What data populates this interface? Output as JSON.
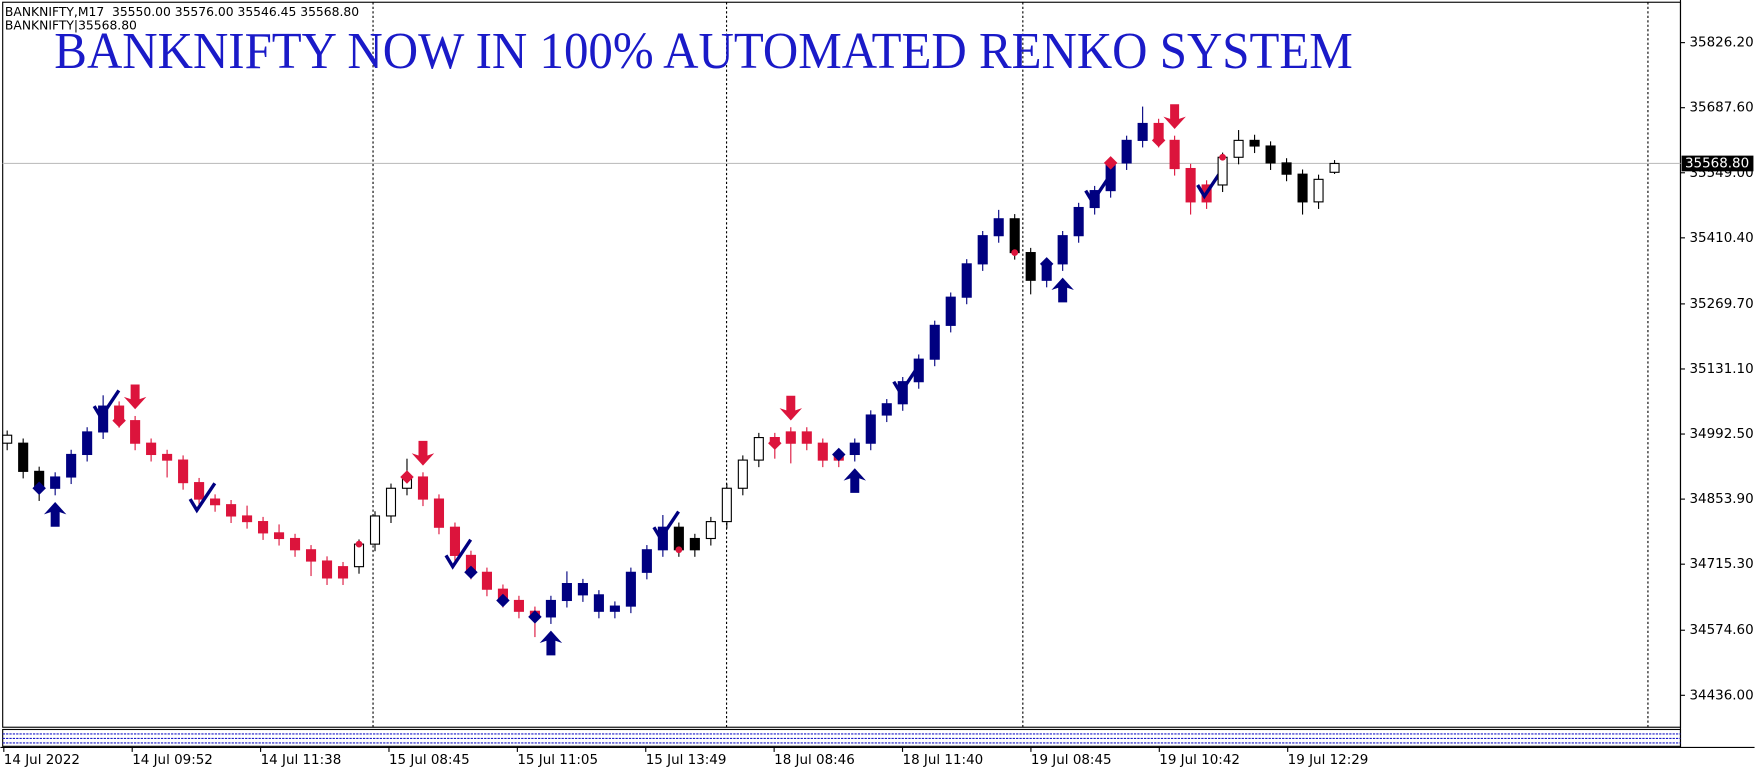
{
  "chart_data": {
    "type": "candlestick",
    "title": "BANKNIFTY NOW IN 100% AUTOMATED RENKO SYSTEM",
    "header_line1": "BANKNIFTY,M17  35550.00 35576.00 35546.45 35568.80",
    "header_line2": "BANKNIFTY|35568.80",
    "x_labels": [
      "14 Jul 2022",
      "14 Jul 09:52",
      "14 Jul 11:38",
      "15 Jul 08:45",
      "15 Jul 11:05",
      "15 Jul 13:49",
      "18 Jul 08:46",
      "18 Jul 11:40",
      "19 Jul 08:45",
      "19 Jul 10:42",
      "19 Jul 12:29"
    ],
    "ylim": [
      34368,
      35917
    ],
    "yticks": [
      {
        "value": 35826.2,
        "label": "35826.20"
      },
      {
        "value": 35687.6,
        "label": "35687.60"
      },
      {
        "value": 35549.0,
        "label": "35549.00"
      },
      {
        "value": 35410.4,
        "label": "35410.40"
      },
      {
        "value": 35269.7,
        "label": "35269.70"
      },
      {
        "value": 35131.1,
        "label": "35131.10"
      },
      {
        "value": 34992.5,
        "label": "34992.50"
      },
      {
        "value": 34853.9,
        "label": "34853.90"
      },
      {
        "value": 34715.3,
        "label": "34715.30"
      },
      {
        "value": 34574.6,
        "label": "34574.60"
      },
      {
        "value": 34436.0,
        "label": "34436.00"
      }
    ],
    "price_line": {
      "value": 35568.8,
      "label": "35568.80"
    },
    "open": [
      34990,
      34973,
      34913,
      34877,
      34901,
      34949,
      34997,
      35052,
      35021,
      34973,
      34949,
      34937,
      34889,
      34854,
      34842,
      34818,
      34806,
      34782,
      34770,
      34746,
      34722,
      34686,
      34710,
      34758,
      34818,
      34877,
      34901,
      34854,
      34794,
      34734,
      34698,
      34662,
      34638,
      34615,
      34603,
      34638,
      34674,
      34650,
      34615,
      34626,
      34698,
      34746,
      34794,
      34746,
      34770,
      34806,
      34877,
      34937,
      34985,
      34973,
      34997,
      34973,
      34937,
      34949,
      34973,
      35033,
      35057,
      35104,
      35152,
      35224,
      35284,
      35355,
      35415,
      35451,
      35379,
      35320,
      35355,
      35415,
      35475,
      35511,
      35570,
      35618,
      35654,
      35618,
      35558,
      35487,
      35523,
      35582,
      35618,
      35606,
      35570,
      35546,
      35487,
      35550.0
    ],
    "high": [
      35000,
      34983,
      34923,
      34911,
      34959,
      35007,
      35075,
      35062,
      35031,
      34983,
      34959,
      34947,
      34899,
      34864,
      34852,
      34840,
      34816,
      34800,
      34780,
      34756,
      34732,
      34720,
      34768,
      34828,
      34887,
      34940,
      34911,
      34864,
      34804,
      34744,
      34708,
      34672,
      34648,
      34625,
      34648,
      34700,
      34684,
      34660,
      34636,
      34708,
      34756,
      34820,
      34804,
      34780,
      34816,
      34887,
      34947,
      34995,
      34995,
      35007,
      35007,
      34983,
      34959,
      34983,
      35043,
      35067,
      35114,
      35162,
      35234,
      35294,
      35365,
      35425,
      35470,
      35461,
      35389,
      35365,
      35425,
      35485,
      35521,
      35580,
      35628,
      35690,
      35664,
      35628,
      35568,
      35533,
      35592,
      35640,
      35630,
      35616,
      35580,
      35556,
      35545,
      35576.0
    ],
    "low": [
      34958,
      34898,
      34850,
      34862,
      34886,
      34934,
      34982,
      35006,
      34958,
      34934,
      34900,
      34874,
      34839,
      34827,
      34803,
      34791,
      34767,
      34755,
      34731,
      34690,
      34671,
      34671,
      34695,
      34743,
      34803,
      34862,
      34839,
      34779,
      34719,
      34683,
      34647,
      34623,
      34600,
      34560,
      34588,
      34623,
      34635,
      34600,
      34600,
      34611,
      34683,
      34731,
      34731,
      34731,
      34755,
      34791,
      34862,
      34922,
      34940,
      34930,
      34958,
      34922,
      34922,
      34934,
      34958,
      35018,
      35042,
      35089,
      35137,
      35209,
      35269,
      35340,
      35400,
      35364,
      35290,
      35305,
      35340,
      35400,
      35460,
      35496,
      35555,
      35603,
      35603,
      35543,
      35460,
      35472,
      35508,
      35567,
      35591,
      35555,
      35531,
      35460,
      35472,
      35546.45
    ],
    "close": [
      34973,
      34913,
      34877,
      34901,
      34949,
      34997,
      35052,
      35021,
      34973,
      34949,
      34937,
      34889,
      34854,
      34842,
      34818,
      34806,
      34782,
      34770,
      34746,
      34722,
      34686,
      34710,
      34758,
      34818,
      34877,
      34901,
      34854,
      34794,
      34734,
      34698,
      34662,
      34638,
      34615,
      34603,
      34638,
      34674,
      34650,
      34615,
      34626,
      34698,
      34746,
      34794,
      34746,
      34770,
      34806,
      34877,
      34937,
      34985,
      34973,
      34997,
      34973,
      34937,
      34949,
      34973,
      35033,
      35057,
      35104,
      35152,
      35224,
      35284,
      35355,
      35415,
      35451,
      35379,
      35320,
      35355,
      35415,
      35475,
      35511,
      35570,
      35618,
      35654,
      35618,
      35558,
      35487,
      35523,
      35582,
      35618,
      35606,
      35570,
      35546,
      35487,
      35535,
      35568.8
    ],
    "colors": [
      "#ffffff",
      "#000000",
      "#000000",
      "#000080",
      "#000080",
      "#000080",
      "#000080",
      "#dc143c",
      "#dc143c",
      "#dc143c",
      "#dc143c",
      "#dc143c",
      "#dc143c",
      "#dc143c",
      "#dc143c",
      "#dc143c",
      "#dc143c",
      "#dc143c",
      "#dc143c",
      "#dc143c",
      "#dc143c",
      "#dc143c",
      "#ffffff",
      "#ffffff",
      "#ffffff",
      "#ffffff",
      "#dc143c",
      "#dc143c",
      "#dc143c",
      "#dc143c",
      "#dc143c",
      "#dc143c",
      "#dc143c",
      "#dc143c",
      "#000080",
      "#000080",
      "#000080",
      "#000080",
      "#000080",
      "#000080",
      "#000080",
      "#000080",
      "#000000",
      "#000000",
      "#ffffff",
      "#ffffff",
      "#ffffff",
      "#ffffff",
      "#dc143c",
      "#dc143c",
      "#dc143c",
      "#dc143c",
      "#dc143c",
      "#000080",
      "#000080",
      "#000080",
      "#000080",
      "#000080",
      "#000080",
      "#000080",
      "#000080",
      "#000080",
      "#000080",
      "#000000",
      "#000000",
      "#000080",
      "#000080",
      "#000080",
      "#000080",
      "#000080",
      "#000080",
      "#000080",
      "#dc143c",
      "#dc143c",
      "#dc143c",
      "#dc143c",
      "#ffffff",
      "#ffffff",
      "#000000",
      "#000000",
      "#000000",
      "#000000",
      "#ffffff",
      "#ffffff"
    ],
    "signals": [
      null,
      null,
      "diamond-navy",
      "arrow-up",
      null,
      null,
      "check",
      "diamond-red",
      "arrow-down",
      null,
      null,
      null,
      "check",
      null,
      null,
      null,
      null,
      null,
      null,
      null,
      null,
      null,
      "dot-red",
      null,
      null,
      "diamond-red",
      "arrow-down",
      null,
      "check",
      "diamond-navy",
      null,
      "diamond-navy",
      null,
      "diamond-navy",
      "arrow-up",
      null,
      null,
      null,
      null,
      null,
      null,
      "check",
      "dot-red",
      null,
      null,
      null,
      null,
      null,
      "diamond-red",
      "arrow-down",
      null,
      null,
      "diamond-navy",
      "arrow-up",
      null,
      null,
      "check",
      null,
      null,
      null,
      null,
      null,
      null,
      "dot-red",
      null,
      "diamond-navy",
      "arrow-up",
      null,
      "check",
      "diamond-red",
      null,
      null,
      "diamond-red",
      "arrow-down",
      null,
      "check",
      "dot-red",
      null,
      null,
      null,
      null,
      null,
      null,
      null
    ]
  }
}
